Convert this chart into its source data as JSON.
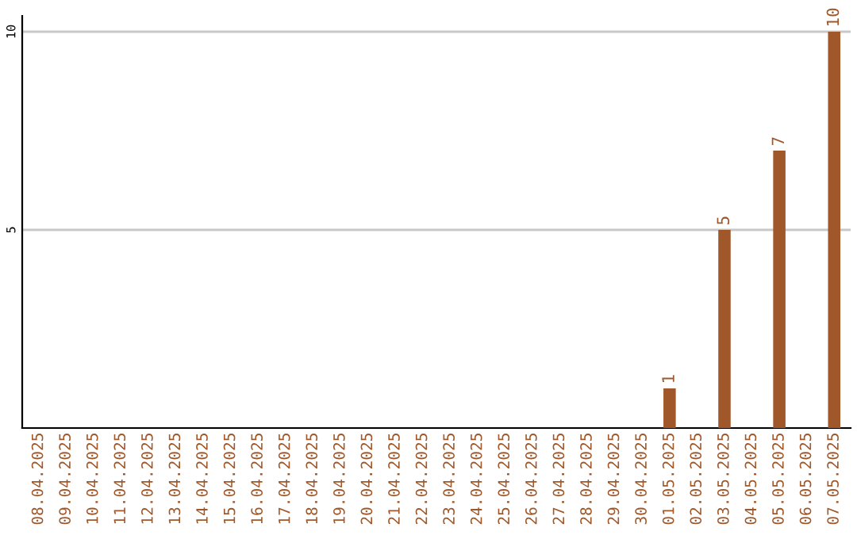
{
  "chart_data": {
    "type": "bar",
    "categories": [
      "08.04.2025",
      "09.04.2025",
      "10.04.2025",
      "11.04.2025",
      "12.04.2025",
      "13.04.2025",
      "14.04.2025",
      "15.04.2025",
      "16.04.2025",
      "17.04.2025",
      "18.04.2025",
      "19.04.2025",
      "20.04.2025",
      "21.04.2025",
      "22.04.2025",
      "23.04.2025",
      "24.04.2025",
      "25.04.2025",
      "26.04.2025",
      "27.04.2025",
      "28.04.2025",
      "29.04.2025",
      "30.04.2025",
      "01.05.2025",
      "02.05.2025",
      "03.05.2025",
      "04.05.2025",
      "05.05.2025",
      "06.05.2025",
      "07.05.2025"
    ],
    "values": [
      0,
      0,
      0,
      0,
      0,
      0,
      0,
      0,
      0,
      0,
      0,
      0,
      0,
      0,
      0,
      0,
      0,
      0,
      0,
      0,
      0,
      0,
      0,
      1,
      0,
      5,
      0,
      7,
      0,
      10
    ],
    "value_labels": [
      null,
      null,
      null,
      null,
      null,
      null,
      null,
      null,
      null,
      null,
      null,
      null,
      null,
      null,
      null,
      null,
      null,
      null,
      null,
      null,
      null,
      null,
      null,
      "1",
      null,
      "5",
      null,
      "7",
      null,
      "10"
    ],
    "color": "#a0582a",
    "ylim": [
      0,
      10.4
    ],
    "yticks": [
      5,
      10
    ],
    "grid": "y",
    "legend": false
  }
}
